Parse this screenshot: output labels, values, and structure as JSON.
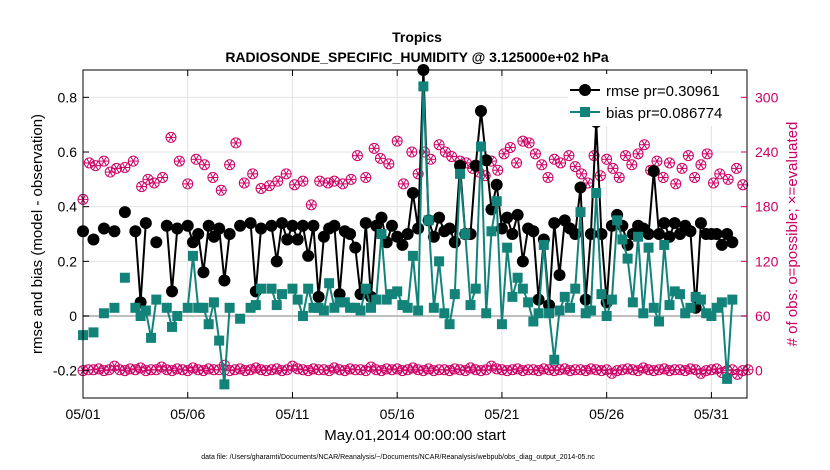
{
  "chart_data": {
    "type": "line",
    "title": "Tropics",
    "subtitle": "RADIOSONDE_SPECIFIC_HUMIDITY @ 3.125000e+02 hPa",
    "xlabel": "May.01,2014 00:00:00 start",
    "ylabel": "rmse and bias (model - observation)",
    "y2label": "# of obs: o=possible; ×=evaluated",
    "footnote": "data file: /Users/gharamti/Documents/NCAR/Reanalysis/~/Documents/NCAR/Reanalysis/webpub/obs_diag_output_2014-05.nc",
    "xlim": [
      0,
      31.7
    ],
    "ylim": [
      -0.3,
      0.9
    ],
    "y2lim": [
      -30,
      330
    ],
    "xticks": [
      0,
      5,
      10,
      15,
      20,
      25,
      30
    ],
    "xtick_labels": [
      "05/01",
      "05/06",
      "05/11",
      "05/16",
      "05/21",
      "05/26",
      "05/31"
    ],
    "yticks": [
      -0.2,
      0,
      0.2,
      0.4,
      0.6,
      0.8
    ],
    "ytick_labels": [
      "-0.2",
      "0",
      "0.2",
      "0.4",
      "0.6",
      "0.8"
    ],
    "y2ticks": [
      0,
      60,
      120,
      180,
      240,
      300
    ],
    "y2tick_labels": [
      "0",
      "60",
      "120",
      "180",
      "240",
      "300"
    ],
    "zero_line": 0,
    "dt": 0.25,
    "legend": {
      "position": "top-right",
      "rmse_label": "rmse pr=0.30961",
      "bias_label": "bias pr=0.086774"
    },
    "colors": {
      "rmse": "#000000",
      "bias": "#13837a",
      "obs": "#cc0066",
      "zero": "#bfbfbf",
      "grid": "#e3e3e3"
    },
    "series": [
      {
        "name": "rmse",
        "values": [
          0.31,
          null,
          0.28,
          null,
          0.32,
          null,
          0.31,
          null,
          0.38,
          null,
          0.31,
          0.05,
          0.34,
          null,
          0.27,
          null,
          0.33,
          0.09,
          0.32,
          null,
          0.33,
          0.27,
          0.3,
          0.16,
          0.33,
          0.29,
          0.32,
          0.13,
          0.3,
          null,
          0.33,
          null,
          0.34,
          0.09,
          0.32,
          null,
          0.33,
          0.2,
          0.34,
          0.28,
          0.33,
          0.28,
          0.33,
          0.22,
          0.33,
          0.07,
          0.29,
          0.32,
          0.33,
          0.08,
          0.31,
          0.3,
          0.25,
          0.08,
          0.34,
          0.07,
          0.33,
          0.36,
          0.27,
          0.33,
          0.29,
          0.26,
          0.3,
          0.45,
          0.32,
          0.9,
          0.35,
          0.29,
          0.36,
          0.31,
          0.32,
          0.27,
          0.55,
          0.3,
          0.3,
          0.55,
          0.75,
          0.57,
          0.39,
          0.48,
          0.32,
          0.36,
          0.3,
          0.37,
          0.2,
          0.32,
          0.31,
          0.06,
          0.28,
          0.04,
          0.34,
          0.15,
          0.35,
          0.32,
          0.3,
          0.47,
          0.06,
          0.3,
          0.71,
          0.3,
          0.05,
          0.33,
          0.37,
          0.33,
          0.26,
          0.3,
          0.33,
          0.32,
          0.3,
          0.53,
          0.3,
          0.34,
          0.29,
          0.34,
          0.3,
          0.33,
          0.31,
          0.03,
          0.34,
          0.3,
          0.3,
          0.3,
          0.26,
          0.3,
          0.27
        ]
      },
      {
        "name": "bias",
        "values": [
          -0.07,
          null,
          -0.06,
          null,
          0.01,
          null,
          0.03,
          null,
          0.14,
          null,
          0.03,
          0.0,
          0.02,
          -0.08,
          0.06,
          null,
          0.03,
          -0.04,
          0.0,
          null,
          0.03,
          0.22,
          0.03,
          0.03,
          -0.03,
          0.05,
          -0.09,
          -0.25,
          0.03,
          null,
          -0.01,
          null,
          0.03,
          0.04,
          0.1,
          null,
          0.1,
          0.04,
          0.08,
          null,
          0.1,
          0.06,
          0.0,
          0.1,
          0.03,
          0.03,
          0.02,
          0.12,
          0.03,
          0.05,
          0.05,
          0.03,
          0.03,
          0.02,
          0.1,
          0.03,
          0.06,
          0.3,
          0.06,
          0.08,
          0.09,
          0.04,
          0.03,
          0.22,
          0.02,
          0.84,
          0.35,
          0.03,
          0.2,
          0.01,
          -0.03,
          0.08,
          0.52,
          0.3,
          0.04,
          0.1,
          0.62,
          0.01,
          0.31,
          0.42,
          -0.03,
          0.25,
          0.07,
          0.14,
          0.1,
          0.05,
          -0.02,
          0.01,
          0.26,
          0.01,
          -0.16,
          0.02,
          0.07,
          0.03,
          0.1,
          0.38,
          0.01,
          0.02,
          0.45,
          0.08,
          0.0,
          0.06,
          0.35,
          0.28,
          0.21,
          0.05,
          0.29,
          0.01,
          0.25,
          0.03,
          -0.02,
          0.26,
          0.04,
          0.09,
          0.08,
          0.01,
          0.03,
          0.07,
          0.06,
          0.01,
          0.0,
          0.03,
          0.05,
          -0.23,
          0.06
        ]
      }
    ],
    "obs_points": [
      {
        "x": 0.0,
        "v": 188
      },
      {
        "x": 0.3,
        "v": 228
      },
      {
        "x": 0.6,
        "v": 225
      },
      {
        "x": 1.0,
        "v": 230
      },
      {
        "x": 1.3,
        "v": 218
      },
      {
        "x": 1.6,
        "v": 222
      },
      {
        "x": 2.0,
        "v": 223
      },
      {
        "x": 2.4,
        "v": 230
      },
      {
        "x": 2.8,
        "v": 202
      },
      {
        "x": 3.1,
        "v": 210
      },
      {
        "x": 3.4,
        "v": 206
      },
      {
        "x": 3.8,
        "v": 212
      },
      {
        "x": 4.2,
        "v": 256
      },
      {
        "x": 4.6,
        "v": 230
      },
      {
        "x": 5.0,
        "v": 205
      },
      {
        "x": 5.4,
        "v": 232
      },
      {
        "x": 5.8,
        "v": 226
      },
      {
        "x": 6.2,
        "v": 212
      },
      {
        "x": 6.6,
        "v": 198
      },
      {
        "x": 7.0,
        "v": 226
      },
      {
        "x": 7.3,
        "v": 250
      },
      {
        "x": 7.7,
        "v": 206
      },
      {
        "x": 8.1,
        "v": 216
      },
      {
        "x": 8.5,
        "v": 200
      },
      {
        "x": 8.9,
        "v": 203
      },
      {
        "x": 9.3,
        "v": 208
      },
      {
        "x": 9.7,
        "v": 216
      },
      {
        "x": 10.1,
        "v": 204
      },
      {
        "x": 10.5,
        "v": 208
      },
      {
        "x": 10.9,
        "v": 182
      },
      {
        "x": 11.3,
        "v": 208
      },
      {
        "x": 11.7,
        "v": 206
      },
      {
        "x": 12.0,
        "v": 208
      },
      {
        "x": 12.4,
        "v": 205
      },
      {
        "x": 12.8,
        "v": 210
      },
      {
        "x": 13.1,
        "v": 236
      },
      {
        "x": 13.5,
        "v": 212
      },
      {
        "x": 13.9,
        "v": 244
      },
      {
        "x": 14.2,
        "v": 233
      },
      {
        "x": 14.6,
        "v": 227
      },
      {
        "x": 15.0,
        "v": 252
      },
      {
        "x": 15.3,
        "v": 205
      },
      {
        "x": 15.7,
        "v": 240
      },
      {
        "x": 16.0,
        "v": 216
      },
      {
        "x": 16.3,
        "v": 240
      },
      {
        "x": 16.6,
        "v": 232
      },
      {
        "x": 17.0,
        "v": 248
      },
      {
        "x": 17.3,
        "v": 240
      },
      {
        "x": 17.6,
        "v": 235
      },
      {
        "x": 18.0,
        "v": 230
      },
      {
        "x": 18.3,
        "v": 228
      },
      {
        "x": 18.6,
        "v": 222
      },
      {
        "x": 18.9,
        "v": 218
      },
      {
        "x": 19.2,
        "v": 214
      },
      {
        "x": 19.5,
        "v": 230
      },
      {
        "x": 19.8,
        "v": 220
      },
      {
        "x": 20.1,
        "v": 238
      },
      {
        "x": 20.4,
        "v": 245
      },
      {
        "x": 20.7,
        "v": 228
      },
      {
        "x": 21.0,
        "v": 252
      },
      {
        "x": 21.3,
        "v": 250
      },
      {
        "x": 21.6,
        "v": 238
      },
      {
        "x": 21.9,
        "v": 226
      },
      {
        "x": 22.2,
        "v": 212
      },
      {
        "x": 22.5,
        "v": 232
      },
      {
        "x": 22.8,
        "v": 228
      },
      {
        "x": 23.2,
        "v": 236
      },
      {
        "x": 23.5,
        "v": 224
      },
      {
        "x": 23.8,
        "v": 216
      },
      {
        "x": 24.1,
        "v": 206
      },
      {
        "x": 24.4,
        "v": 236
      },
      {
        "x": 24.7,
        "v": 214
      },
      {
        "x": 25.0,
        "v": 232
      },
      {
        "x": 25.3,
        "v": 222
      },
      {
        "x": 25.6,
        "v": 212
      },
      {
        "x": 25.9,
        "v": 236
      },
      {
        "x": 26.2,
        "v": 226
      },
      {
        "x": 26.5,
        "v": 238
      },
      {
        "x": 26.8,
        "v": 248
      },
      {
        "x": 27.1,
        "v": 220
      },
      {
        "x": 27.4,
        "v": 230
      },
      {
        "x": 27.7,
        "v": 212
      },
      {
        "x": 28.0,
        "v": 228
      },
      {
        "x": 28.3,
        "v": 205
      },
      {
        "x": 28.6,
        "v": 222
      },
      {
        "x": 28.9,
        "v": 236
      },
      {
        "x": 29.2,
        "v": 212
      },
      {
        "x": 29.5,
        "v": 226
      },
      {
        "x": 29.8,
        "v": 238
      },
      {
        "x": 30.1,
        "v": 206
      },
      {
        "x": 30.4,
        "v": 216
      },
      {
        "x": 30.8,
        "v": 210
      },
      {
        "x": 31.2,
        "v": 222
      },
      {
        "x": 31.5,
        "v": 204
      }
    ],
    "obs_low": [
      0,
      1,
      1,
      2,
      0,
      1,
      5,
      1,
      0,
      2,
      1,
      3,
      0,
      1,
      1,
      4,
      1,
      0,
      2,
      1,
      0,
      3,
      1,
      0,
      2,
      1,
      1,
      6,
      0,
      1,
      2,
      0,
      1,
      3,
      1,
      0,
      1,
      2,
      0,
      1,
      5,
      2,
      1,
      0,
      2,
      1,
      1,
      0,
      3,
      1,
      0,
      2,
      1,
      1,
      0,
      4,
      1,
      0,
      2,
      1,
      2,
      0,
      1,
      3,
      1,
      0,
      2,
      0,
      1,
      1,
      0,
      2,
      1,
      0,
      3,
      1,
      0,
      1,
      5,
      2,
      1,
      0,
      1,
      2,
      0,
      1,
      1,
      0,
      2,
      1,
      0,
      1,
      2,
      0,
      1,
      1,
      0,
      2,
      1,
      0,
      1,
      -3,
      0,
      1,
      2,
      1,
      0,
      3,
      1,
      0,
      1,
      2,
      0,
      1,
      1,
      0,
      2,
      1,
      -3,
      0,
      1,
      2,
      -2,
      0,
      1,
      -4,
      0,
      1
    ]
  }
}
